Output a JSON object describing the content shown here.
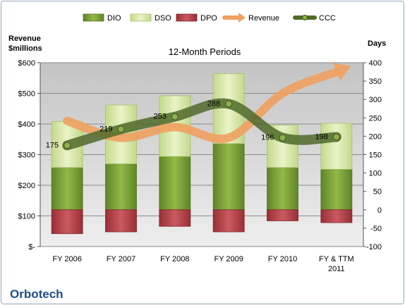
{
  "chart_data": {
    "type": "bar",
    "title": "12-Month Periods",
    "company": "Orbotech",
    "categories": [
      "FY 2006",
      "FY 2007",
      "FY 2008",
      "FY 2009",
      "FY 2010",
      "FY & TTM 2011"
    ],
    "left_axis": {
      "label_line1": "Revenue",
      "label_line2": "$millions",
      "ticks": [
        "$-",
        "$100",
        "$200",
        "$300",
        "$400",
        "$500",
        "$600"
      ],
      "ylim": [
        0,
        600
      ]
    },
    "right_axis": {
      "label": "Days",
      "ticks": [
        "-100",
        "-50",
        "0",
        "50",
        "100",
        "150",
        "200",
        "250",
        "300",
        "350",
        "400"
      ],
      "ylim": [
        -100,
        400
      ]
    },
    "legend": {
      "position": "top",
      "items": [
        "DIO",
        "DSO",
        "DPO",
        "Revenue",
        "CCC"
      ]
    },
    "series": [
      {
        "name": "DIO",
        "axis": "right",
        "kind": "stacked-bar",
        "values": [
          115,
          125,
          145,
          180,
          115,
          110
        ]
      },
      {
        "name": "DSO",
        "axis": "right",
        "kind": "stacked-bar",
        "values": [
          125,
          160,
          165,
          190,
          115,
          125
        ]
      },
      {
        "name": "DPO",
        "axis": "right",
        "kind": "negative-bar",
        "values": [
          -65,
          -60,
          -45,
          -60,
          -30,
          -35
        ]
      },
      {
        "name": "Revenue",
        "axis": "left",
        "kind": "line",
        "values": [
          410,
          355,
          390,
          355,
          500,
          570
        ]
      },
      {
        "name": "CCC",
        "axis": "right",
        "kind": "line",
        "values": [
          175,
          219,
          253,
          288,
          196,
          198
        ],
        "labels": [
          "175",
          "219",
          "253",
          "288",
          "196",
          "198"
        ]
      }
    ],
    "colors": {
      "DIO": "#7ea23c",
      "DSO": "#d9e8a8",
      "DPO": "#b8434a",
      "Revenue": "#f0a060",
      "CCC": "#4f6a2a",
      "plot_bg": "#cfcfcf",
      "title_blue": "#1f4e8c"
    },
    "grid": true
  }
}
